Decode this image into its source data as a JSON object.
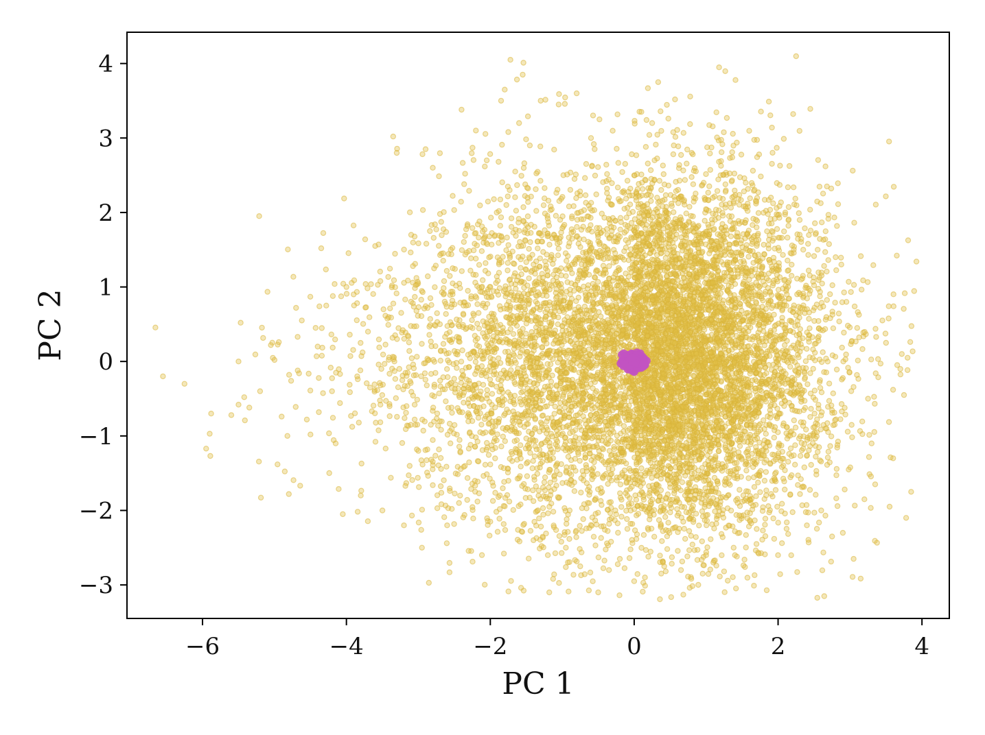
{
  "chart_data": {
    "type": "scatter",
    "title": "",
    "xlabel": "PC 1",
    "ylabel": "PC 2",
    "xlim": [
      -7.05,
      4.38
    ],
    "ylim": [
      -3.45,
      4.42
    ],
    "x_ticks": [
      -6,
      -4,
      -2,
      0,
      2,
      4
    ],
    "y_ticks": [
      -3,
      -2,
      -1,
      0,
      1,
      2,
      3,
      4
    ],
    "x_tick_labels": [
      "−6",
      "−4",
      "−2",
      "0",
      "2",
      "4"
    ],
    "y_tick_labels": [
      "−3",
      "−2",
      "−1",
      "0",
      "1",
      "2",
      "3",
      "4"
    ],
    "grid": false,
    "legend": "none",
    "series": [
      {
        "color": "#e3c146",
        "count_estimate": 9000,
        "center": [
          0.0,
          0.0
        ],
        "points": [
          [
            -6.55,
            -0.2
          ],
          [
            -6.25,
            -0.3
          ],
          [
            -5.95,
            -1.17
          ],
          [
            -5.88,
            -0.7
          ],
          [
            -5.9,
            -0.97
          ],
          [
            -5.6,
            -0.72
          ],
          [
            -5.47,
            0.52
          ],
          [
            -5.5,
            0.0
          ],
          [
            -5.42,
            -0.48
          ],
          [
            -5.5,
            -0.58
          ],
          [
            -5.35,
            -0.62
          ],
          [
            -5.2,
            -0.4
          ],
          [
            -5.05,
            0.22
          ],
          [
            -5.0,
            0.02
          ],
          [
            -4.9,
            -0.74
          ],
          [
            -4.82,
            -1.0
          ],
          [
            -4.8,
            -1.78
          ],
          [
            -4.7,
            0.72
          ],
          [
            -4.62,
            0.55
          ],
          [
            -4.55,
            -0.78
          ],
          [
            -4.5,
            -0.98
          ],
          [
            -4.4,
            0.2
          ],
          [
            -4.35,
            1.52
          ],
          [
            -4.28,
            0.75
          ],
          [
            -4.2,
            -0.4
          ],
          [
            -4.15,
            -1.1
          ],
          [
            -4.05,
            -2.05
          ],
          [
            -4.0,
            1.0
          ],
          [
            -3.9,
            0.9
          ],
          [
            -3.85,
            -0.2
          ],
          [
            -3.8,
            -1.8
          ],
          [
            -3.7,
            0.4
          ],
          [
            -3.6,
            1.55
          ],
          [
            -3.5,
            -2.0
          ],
          [
            -3.4,
            -0.6
          ],
          [
            -3.35,
            3.02
          ],
          [
            -3.3,
            2.8
          ],
          [
            -3.2,
            -2.2
          ],
          [
            -3.1,
            1.7
          ],
          [
            -3.0,
            -1.2
          ],
          [
            -2.95,
            -2.5
          ],
          [
            -2.9,
            2.85
          ],
          [
            -2.8,
            2.6
          ],
          [
            -2.7,
            0.5
          ],
          [
            -2.6,
            -2.2
          ],
          [
            -2.55,
            1.5
          ],
          [
            -2.4,
            3.38
          ],
          [
            -2.35,
            2.52
          ],
          [
            -2.25,
            -0.8
          ],
          [
            -2.2,
            3.1
          ],
          [
            -2.05,
            2.7
          ],
          [
            -2.0,
            -2.15
          ],
          [
            -1.85,
            3.5
          ],
          [
            -1.8,
            3.65
          ],
          [
            -1.75,
            3.08
          ],
          [
            -1.72,
            4.05
          ],
          [
            -1.6,
            3.2
          ],
          [
            -1.55,
            3.85
          ],
          [
            -1.45,
            2.9
          ],
          [
            -1.4,
            -2.4
          ],
          [
            -1.3,
            3.5
          ],
          [
            -1.2,
            -2.6
          ],
          [
            -1.18,
            -3.1
          ],
          [
            -1.05,
            3.45
          ],
          [
            -0.95,
            -2.5
          ],
          [
            -0.8,
            3.6
          ],
          [
            -0.75,
            -2.75
          ],
          [
            -0.6,
            3.0
          ],
          [
            -0.5,
            -3.1
          ],
          [
            -0.35,
            -2.8
          ],
          [
            -0.2,
            -2.65
          ],
          [
            0.0,
            -2.95
          ],
          [
            0.1,
            3.35
          ],
          [
            0.15,
            -2.9
          ],
          [
            0.25,
            3.2
          ],
          [
            0.4,
            -2.7
          ],
          [
            0.55,
            2.9
          ],
          [
            0.65,
            -2.8
          ],
          [
            0.8,
            2.8
          ],
          [
            1.0,
            -2.6
          ],
          [
            1.1,
            -2.7
          ],
          [
            1.2,
            2.5
          ],
          [
            1.4,
            -2.6
          ],
          [
            1.55,
            2.4
          ],
          [
            1.7,
            -2.45
          ],
          [
            1.9,
            2.2
          ],
          [
            2.0,
            -2.6
          ],
          [
            2.1,
            2.0
          ],
          [
            2.3,
            1.9
          ],
          [
            2.4,
            -2.2
          ],
          [
            2.55,
            1.5
          ],
          [
            2.6,
            -2.0
          ],
          [
            2.75,
            -2.35
          ],
          [
            2.8,
            1.4
          ],
          [
            2.9,
            -2.3
          ],
          [
            2.95,
            0.8
          ],
          [
            3.05,
            -2.65
          ],
          [
            3.1,
            0.45
          ],
          [
            3.2,
            -1.85
          ],
          [
            3.25,
            -0.5
          ],
          [
            3.3,
            -1.1
          ],
          [
            3.35,
            -1.65
          ],
          [
            3.45,
            0.55
          ],
          [
            3.5,
            0.25
          ],
          [
            3.55,
            -1.95
          ],
          [
            3.6,
            -1.3
          ],
          [
            3.7,
            -0.1
          ],
          [
            3.72,
            0.1
          ],
          [
            3.75,
            -0.45
          ],
          [
            3.78,
            -2.1
          ],
          [
            3.85,
            -1.75
          ],
          [
            3.8,
            0.05
          ]
        ]
      },
      {
        "color": "#c253c2",
        "count_estimate": 400,
        "center": [
          0.0,
          0.0
        ]
      }
    ]
  }
}
